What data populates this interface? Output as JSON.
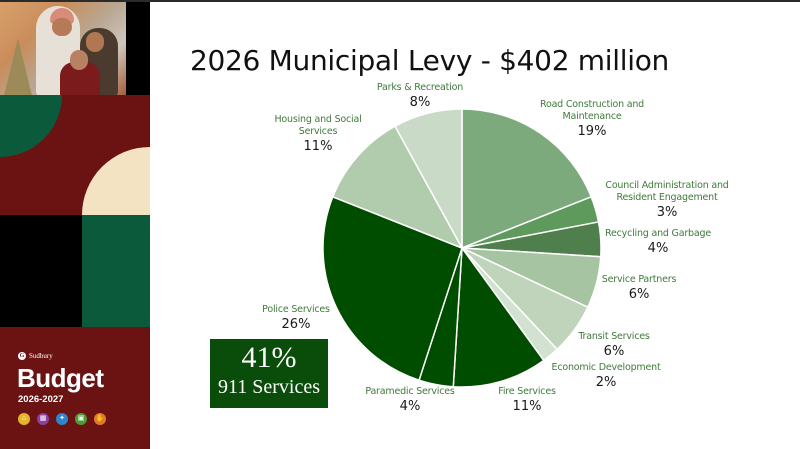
{
  "slide": {
    "title": "2026 Municipal Levy -  $402 million"
  },
  "sidebar": {
    "brand": "Sudbury",
    "brand_mark": "G",
    "budget_title": "Budget",
    "budget_years": "2026-2027",
    "icons": [
      {
        "name": "house-icon",
        "glyph": "⌂",
        "color": "#e3b62a"
      },
      {
        "name": "calculator-icon",
        "glyph": "▦",
        "color": "#8b3fa0"
      },
      {
        "name": "hammer-icon",
        "glyph": "✦",
        "color": "#2d86c8"
      },
      {
        "name": "document-icon",
        "glyph": "▣",
        "color": "#4e9b3b"
      },
      {
        "name": "hand-icon",
        "glyph": "✋",
        "color": "#e07b2c"
      }
    ],
    "colors": {
      "maroon": "#6b1313",
      "green": "#0c5a3c",
      "cream": "#f4e3c3",
      "black": "#000000"
    }
  },
  "callout": {
    "value": "41%",
    "label": "911 Services",
    "color": "#0a4d0a"
  },
  "chart_data": {
    "type": "pie",
    "title": "2026 Municipal Levy -  $402 million",
    "total": "$402 million",
    "start_angle": "12 o'clock, clockwise",
    "categories": [
      "Road Construction and Maintenance",
      "Council Administration and Resident Engagement",
      "Recycling and Garbage",
      "Service Partners",
      "Transit Services",
      "Economic Development",
      "Fire Services",
      "Paramedic Services",
      "Police Services",
      "Housing and Social Services",
      "Parks & Recreation"
    ],
    "values": [
      19,
      3,
      4,
      6,
      6,
      2,
      11,
      4,
      26,
      11,
      8
    ],
    "unit": "%",
    "colors": [
      "#7daa7c",
      "#5e9a5c",
      "#4f7f4c",
      "#a6c3a2",
      "#bfd4bb",
      "#d3e1d0",
      "#004d00",
      "#004d00",
      "#004d00",
      "#b1cbad",
      "#c9dac6"
    ],
    "legend": "none (direct data labels)",
    "annotation": "41% 911 Services (Police 26% + Fire 11% + Paramedic 4%)"
  },
  "labels": [
    {
      "name_lines": [
        "Road Construction and",
        "Maintenance"
      ],
      "pct": "19%"
    },
    {
      "name_lines": [
        "Council Administration and",
        "Resident Engagement"
      ],
      "pct": "3%"
    },
    {
      "name_lines": [
        "Recycling and Garbage"
      ],
      "pct": "4%"
    },
    {
      "name_lines": [
        "Service Partners"
      ],
      "pct": "6%"
    },
    {
      "name_lines": [
        "Transit Services"
      ],
      "pct": "6%"
    },
    {
      "name_lines": [
        "Economic Development"
      ],
      "pct": "2%"
    },
    {
      "name_lines": [
        "Fire Services"
      ],
      "pct": "11%"
    },
    {
      "name_lines": [
        "Paramedic Services"
      ],
      "pct": "4%"
    },
    {
      "name_lines": [
        "Police Services"
      ],
      "pct": "26%"
    },
    {
      "name_lines": [
        "Housing and Social",
        "Services"
      ],
      "pct": "11%"
    },
    {
      "name_lines": [
        "Parks & Recreation"
      ],
      "pct": "8%"
    }
  ]
}
